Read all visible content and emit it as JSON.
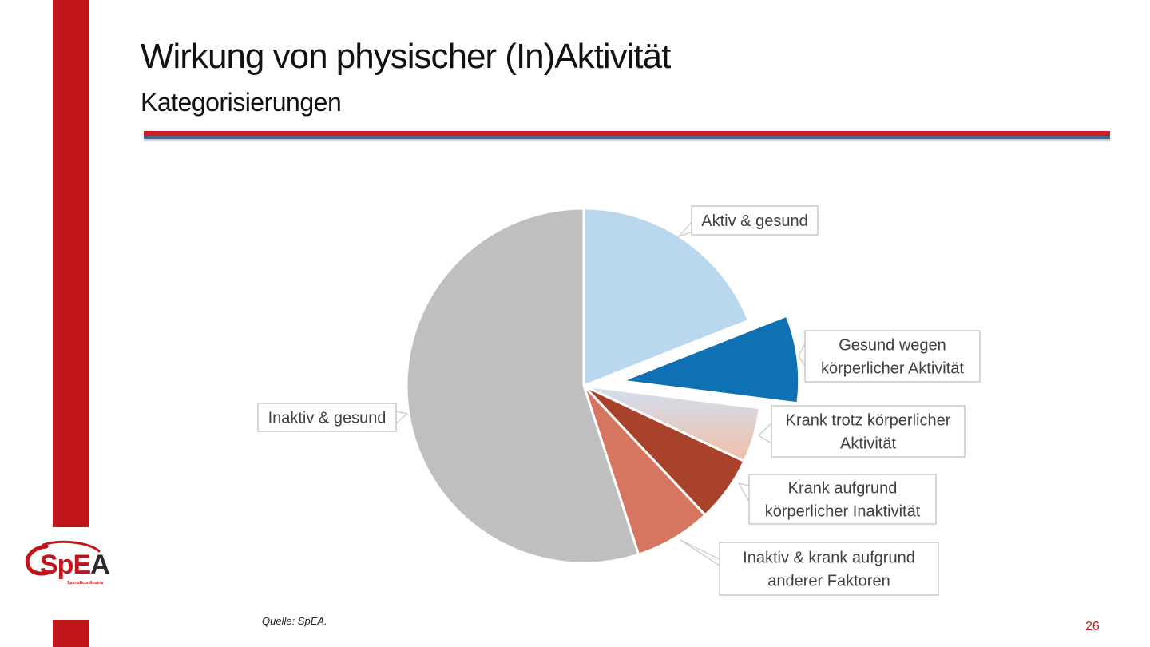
{
  "slide": {
    "title": "Wirkung von physischer (In)Aktivität",
    "subtitle": "Kategorisierungen",
    "source": "Quelle: SpEA.",
    "page_number": "26"
  },
  "logo": {
    "text_sp": "Sp",
    "text_e": "E",
    "text_a": "A",
    "tagline": "SportsEconAustria"
  },
  "colors": {
    "brand_red": "#c0161b",
    "rule_blue": "#1f4e79"
  },
  "chart_data": {
    "type": "pie",
    "start_angle_deg": 0,
    "direction": "clockwise",
    "slices": [
      {
        "label": "Aktiv & gesund",
        "value": 19,
        "color": "#b9d7ed",
        "explode": 0
      },
      {
        "label": "Gesund wegen körperlicher Aktivität",
        "value": 8,
        "color": "#1070b4",
        "explode": 48
      },
      {
        "label": "Krank trotz körperlicher Aktivität",
        "value": 5,
        "color": "#e8c4b6",
        "explode": 0
      },
      {
        "label": "Krank aufgrund körperlicher Inaktivität",
        "value": 6,
        "color": "#a8422a",
        "explode": 0
      },
      {
        "label": "Inaktiv & krank aufgrund anderer Faktoren",
        "value": 7,
        "color": "#d67660",
        "explode": 0
      },
      {
        "label": "Inaktiv & gesund",
        "value": 55,
        "color": "#bfbfbf",
        "explode": 0
      }
    ],
    "callouts": [
      {
        "lines": [
          "Aktiv & gesund"
        ]
      },
      {
        "lines": [
          "Gesund wegen",
          "körperlicher Aktivität"
        ]
      },
      {
        "lines": [
          "Krank trotz körperlicher",
          "Aktivität"
        ]
      },
      {
        "lines": [
          "Krank aufgrund",
          "körperlicher Inaktivität"
        ]
      },
      {
        "lines": [
          "Inaktiv & krank aufgrund",
          "anderer Faktoren"
        ]
      },
      {
        "lines": [
          "Inaktiv & gesund"
        ]
      }
    ]
  }
}
